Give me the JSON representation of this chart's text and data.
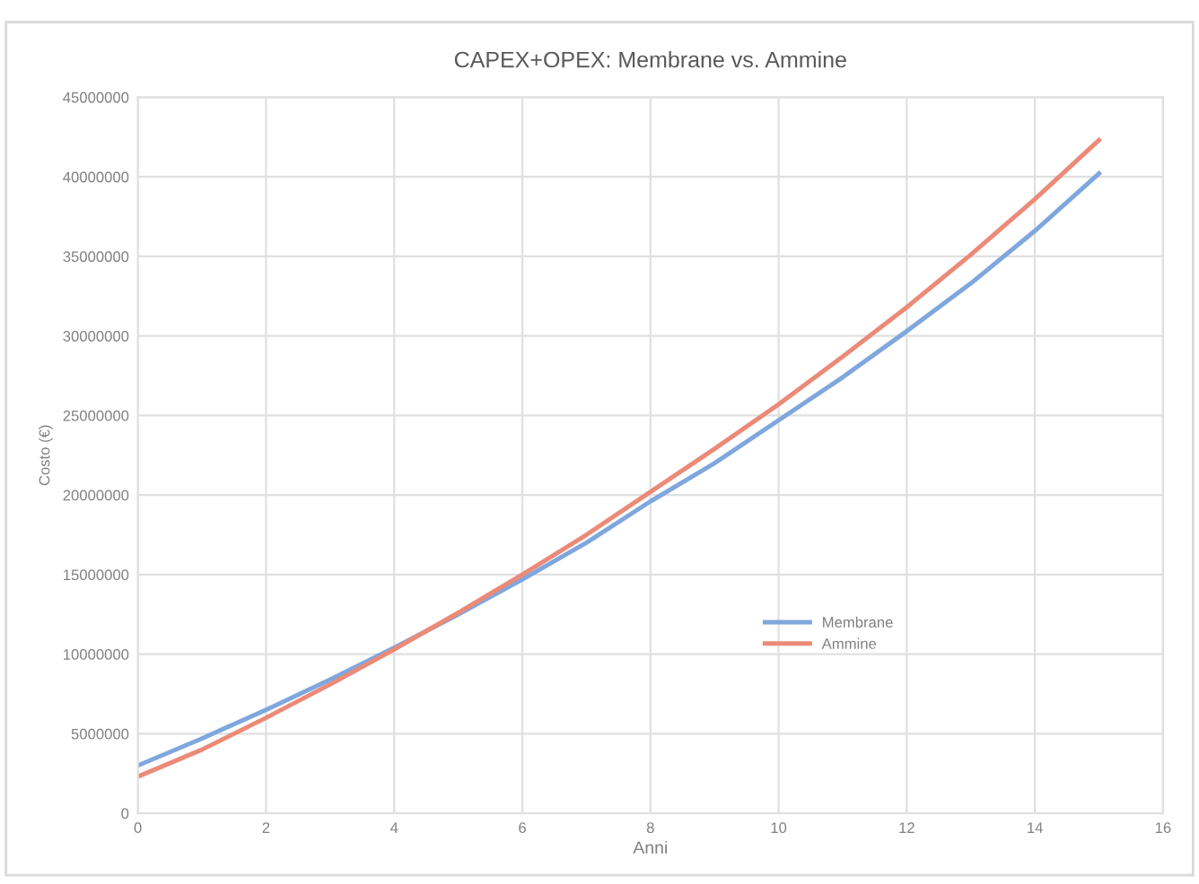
{
  "chart_data": {
    "type": "line",
    "title": "CAPEX+OPEX: Membrane vs. Ammine",
    "xlabel": "Anni",
    "ylabel": "Costo (€)",
    "x": [
      0,
      1,
      2,
      3,
      4,
      5,
      6,
      7,
      8,
      9,
      10,
      11,
      12,
      13,
      14,
      15
    ],
    "series": [
      {
        "name": "Membrane",
        "color": "#7fa7de",
        "values": [
          3000000,
          4700000,
          6500000,
          8400000,
          10400000,
          12500000,
          14700000,
          17000000,
          19600000,
          22000000,
          24700000,
          27400000,
          30300000,
          33300000,
          36600000,
          40200000
        ]
      },
      {
        "name": "Ammine",
        "color": "#ec8a78",
        "values": [
          2300000,
          4000000,
          6000000,
          8100000,
          10300000,
          12600000,
          15000000,
          17500000,
          20200000,
          22900000,
          25700000,
          28700000,
          31800000,
          35100000,
          38600000,
          42300000
        ]
      }
    ],
    "xlim": [
      0,
      16
    ],
    "xticks": [
      0,
      2,
      4,
      6,
      8,
      10,
      12,
      14,
      16
    ],
    "ylim": [
      0,
      45000000
    ],
    "yticks": [
      0,
      5000000,
      10000000,
      15000000,
      20000000,
      25000000,
      30000000,
      35000000,
      40000000,
      45000000
    ],
    "grid": true,
    "legend": "center right",
    "marker": "none",
    "line_style": "solid"
  }
}
